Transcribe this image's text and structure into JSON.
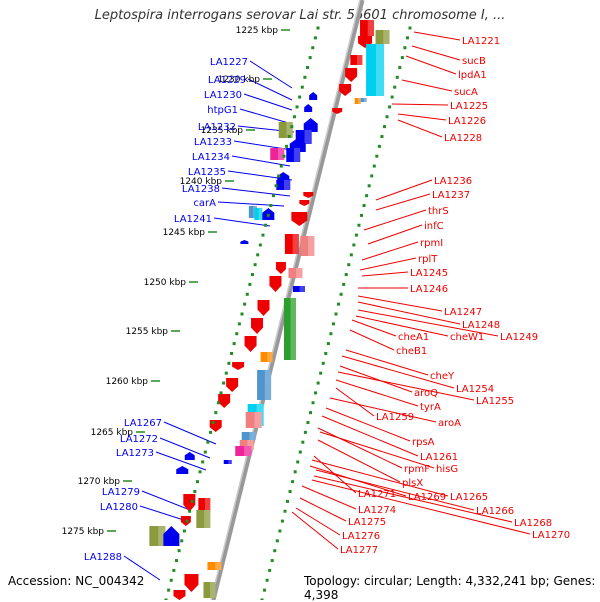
{
  "title": "Leptospira interrogans serovar Lai str. 56601 chromosome I, ...",
  "footer": {
    "accession": "Accession: NC_004342",
    "summary": "Topology: circular; Length: 4,332,241 bp; Genes: 4,398"
  },
  "scale_unit": "kbp",
  "ticks": [
    "1225 kbp",
    "1230 kbp",
    "1235 kbp",
    "1240 kbp",
    "1245 kbp",
    "1250 kbp",
    "1255 kbp",
    "1260 kbp",
    "1265 kbp",
    "1270 kbp",
    "1275 kbp"
  ],
  "left_labels": [
    "LA1227",
    "LA1229",
    "LA1230",
    "htpG1",
    "LA1232",
    "LA1233",
    "LA1234",
    "LA1235",
    "LA1238",
    "carA",
    "LA1241",
    "LA1267",
    "LA1272",
    "LA1273",
    "LA1279",
    "LA1280",
    "LA1288"
  ],
  "right_labels": [
    "LA1221",
    "sucB",
    "lpdA1",
    "sucA",
    "LA1225",
    "LA1226",
    "LA1228",
    "LA1236",
    "LA1237",
    "thrS",
    "infC",
    "rpmI",
    "rplT",
    "LA1245",
    "LA1246",
    "LA1247",
    "LA1248",
    "LA1249",
    "cheA1",
    "cheW1",
    "cheB1",
    "cheY",
    "LA1254",
    "aroQ",
    "LA1255",
    "tyrA",
    "LA1259",
    "aroA",
    "rpsA",
    "LA1261",
    "rpmF",
    "hisG",
    "plsX",
    "LA1271",
    "LA1269",
    "LA1265",
    "LA1274",
    "LA1266",
    "LA1275",
    "LA1268",
    "LA1276",
    "LA1270",
    "LA1277"
  ],
  "colors": {
    "forward": "#0000ee",
    "reverse": "#ee0000",
    "backbone": "#999999",
    "tick": "#228b22",
    "olive": "#8b9a3c",
    "cyan": "#00d0f0",
    "green": "#2ca02c",
    "pink": "#f08080",
    "magenta": "#ee2299",
    "orange": "#ff8c00",
    "steelblue": "#4f94cd"
  }
}
